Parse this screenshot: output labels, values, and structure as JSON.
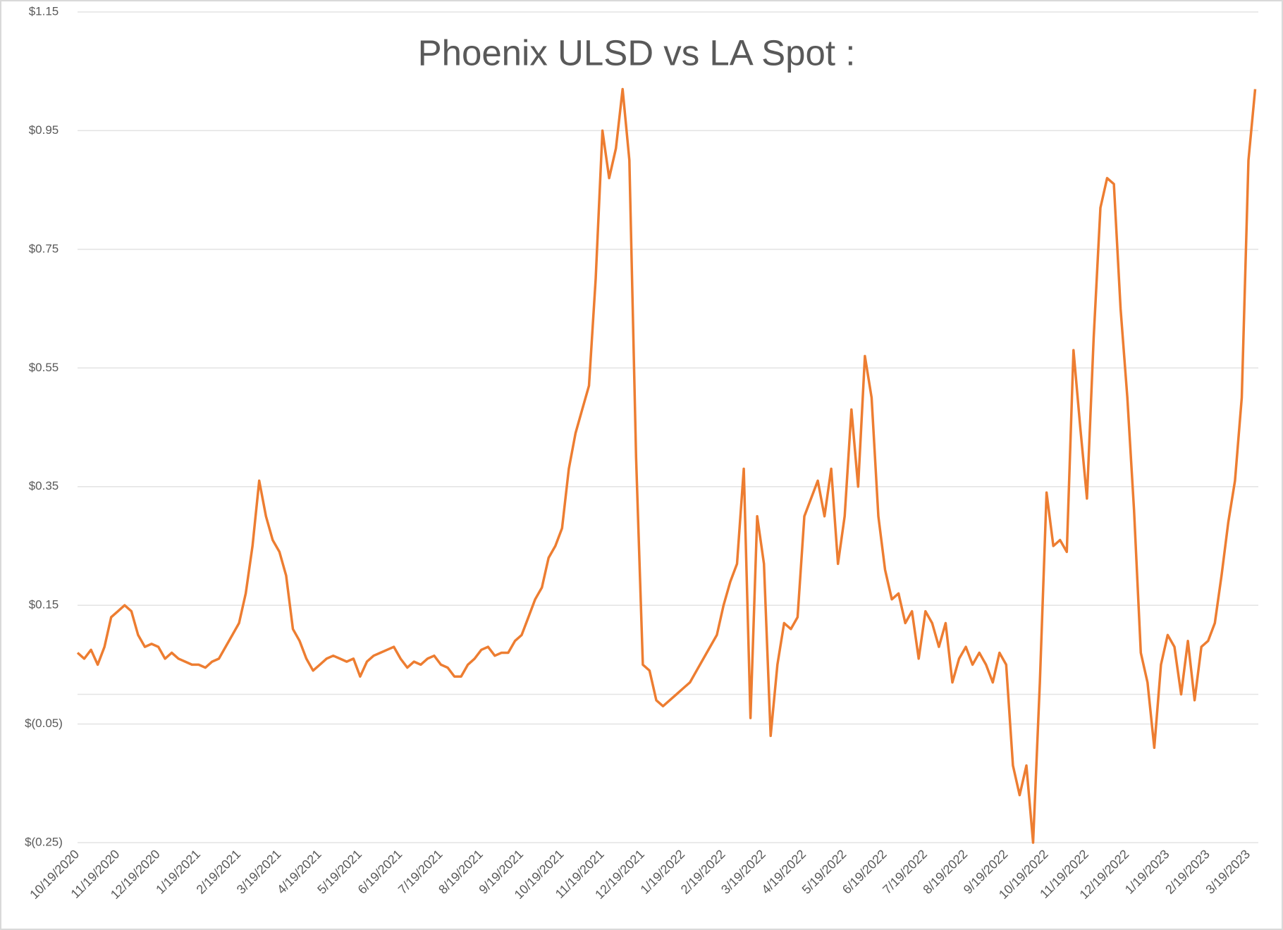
{
  "chart_data": {
    "type": "line",
    "title": "Phoenix ULSD vs LA Spot :",
    "color": "#ed7d31",
    "grid": true,
    "ylim": [
      -0.25,
      1.15
    ],
    "yticks": [
      {
        "value": -0.25,
        "label": "$(0.25)"
      },
      {
        "value": -0.05,
        "label": "$(0.05)"
      },
      {
        "value": 0.15,
        "label": "$0.15"
      },
      {
        "value": 0.35,
        "label": "$0.35"
      },
      {
        "value": 0.55,
        "label": "$0.55"
      },
      {
        "value": 0.75,
        "label": "$0.75"
      },
      {
        "value": 0.95,
        "label": "$0.95"
      },
      {
        "value": 1.15,
        "label": "$1.15"
      }
    ],
    "categories": [
      "10/19/2020",
      null,
      null,
      null,
      null,
      null,
      "11/19/2020",
      null,
      null,
      null,
      null,
      null,
      "12/19/2020",
      null,
      null,
      null,
      null,
      null,
      "1/19/2021",
      null,
      null,
      null,
      null,
      null,
      "2/19/2021",
      null,
      null,
      null,
      null,
      null,
      "3/19/2021",
      null,
      null,
      null,
      null,
      null,
      "4/19/2021",
      null,
      null,
      null,
      null,
      null,
      "5/19/2021",
      null,
      null,
      null,
      null,
      null,
      "6/19/2021",
      null,
      null,
      null,
      null,
      null,
      "7/19/2021",
      null,
      null,
      null,
      null,
      null,
      "8/19/2021",
      null,
      null,
      null,
      null,
      null,
      "9/19/2021",
      null,
      null,
      null,
      null,
      null,
      "10/19/2021",
      null,
      null,
      null,
      null,
      null,
      "11/19/2021",
      null,
      null,
      null,
      null,
      null,
      "12/19/2021",
      null,
      null,
      null,
      null,
      null,
      "1/19/2022",
      null,
      null,
      null,
      null,
      null,
      "2/19/2022",
      null,
      null,
      null,
      null,
      null,
      "3/19/2022",
      null,
      null,
      null,
      null,
      null,
      "4/19/2022",
      null,
      null,
      null,
      null,
      null,
      "5/19/2022",
      null,
      null,
      null,
      null,
      null,
      "6/19/2022",
      null,
      null,
      null,
      null,
      null,
      "7/19/2022",
      null,
      null,
      null,
      null,
      null,
      "8/19/2022",
      null,
      null,
      null,
      null,
      null,
      "9/19/2022",
      null,
      null,
      null,
      null,
      null,
      "10/19/2022",
      null,
      null,
      null,
      null,
      null,
      "11/19/2022",
      null,
      null,
      null,
      null,
      null,
      "12/19/2022",
      null,
      null,
      null,
      null,
      null,
      "1/19/2023",
      null,
      null,
      null,
      null,
      null,
      "2/19/2023",
      null,
      null,
      null,
      null,
      null,
      "3/19/2023",
      null
    ],
    "values": [
      0.07,
      0.06,
      0.075,
      0.05,
      0.08,
      0.13,
      0.14,
      0.15,
      0.14,
      0.1,
      0.08,
      0.085,
      0.08,
      0.06,
      0.07,
      0.06,
      0.055,
      0.05,
      0.05,
      0.045,
      0.055,
      0.06,
      0.08,
      0.1,
      0.12,
      0.17,
      0.25,
      0.36,
      0.3,
      0.26,
      0.24,
      0.2,
      0.11,
      0.09,
      0.06,
      0.04,
      0.05,
      0.06,
      0.065,
      0.06,
      0.055,
      0.06,
      0.03,
      0.055,
      0.065,
      0.07,
      0.075,
      0.08,
      0.06,
      0.045,
      0.055,
      0.05,
      0.06,
      0.065,
      0.05,
      0.045,
      0.03,
      0.03,
      0.05,
      0.06,
      0.075,
      0.08,
      0.065,
      0.07,
      0.07,
      0.09,
      0.1,
      0.13,
      0.16,
      0.18,
      0.23,
      0.25,
      0.28,
      0.38,
      0.44,
      0.48,
      0.52,
      0.7,
      0.95,
      0.87,
      0.92,
      1.02,
      0.9,
      0.4,
      0.05,
      0.04,
      -0.01,
      -0.02,
      -0.01,
      0.0,
      0.01,
      0.02,
      0.04,
      0.06,
      0.08,
      0.1,
      0.15,
      0.19,
      0.22,
      0.38,
      -0.04,
      0.3,
      0.22,
      -0.07,
      0.05,
      0.12,
      0.11,
      0.13,
      0.3,
      0.33,
      0.36,
      0.3,
      0.38,
      0.22,
      0.3,
      0.48,
      0.35,
      0.57,
      0.5,
      0.3,
      0.21,
      0.16,
      0.17,
      0.12,
      0.14,
      0.06,
      0.14,
      0.12,
      0.08,
      0.12,
      0.02,
      0.06,
      0.08,
      0.05,
      0.07,
      0.05,
      0.02,
      0.07,
      0.05,
      -0.12,
      -0.17,
      -0.12,
      -0.25,
      0.02,
      0.34,
      0.25,
      0.26,
      0.24,
      0.58,
      0.45,
      0.33,
      0.6,
      0.82,
      0.87,
      0.86,
      0.65,
      0.5,
      0.31,
      0.07,
      0.02,
      -0.09,
      0.05,
      0.1,
      0.08,
      0.0,
      0.09,
      -0.01,
      0.08,
      0.09,
      0.12,
      0.2,
      0.29,
      0.36,
      0.5,
      0.9,
      1.02
    ]
  }
}
